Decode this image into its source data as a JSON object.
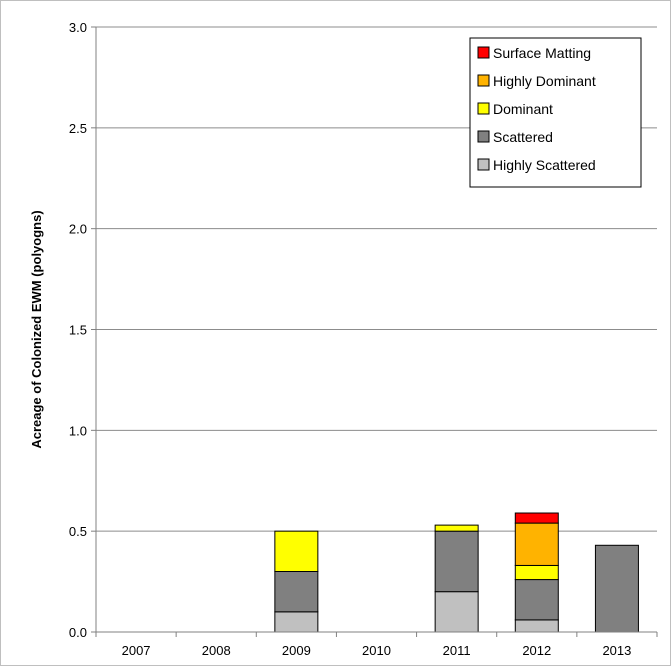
{
  "chart_data": {
    "type": "bar",
    "stacked": true,
    "title": "",
    "xlabel": "",
    "ylabel": "Acreage of Colonized EWM (polyogns)",
    "ylim": [
      0,
      3.0
    ],
    "yticks": [
      "0.0",
      "0.5",
      "1.0",
      "1.5",
      "2.0",
      "2.5",
      "3.0"
    ],
    "ytick_values": [
      0,
      0.5,
      1.0,
      1.5,
      2.0,
      2.5,
      3.0
    ],
    "grid": true,
    "legend_position": "top-right",
    "categories": [
      "2007",
      "2008",
      "2009",
      "2010",
      "2011",
      "2012",
      "2013"
    ],
    "series": [
      {
        "name": "Highly Scattered",
        "color": "#c0c0c0",
        "values": [
          0,
          0,
          0.1,
          0,
          0.2,
          0.06,
          0
        ]
      },
      {
        "name": "Scattered",
        "color": "#808080",
        "values": [
          0,
          0,
          0.2,
          0,
          0.3,
          0.2,
          0.43
        ]
      },
      {
        "name": "Dominant",
        "color": "#ffff00",
        "values": [
          0,
          0,
          0.2,
          0,
          0.03,
          0.07,
          0
        ]
      },
      {
        "name": "Highly Dominant",
        "color": "#ffb300",
        "values": [
          0,
          0,
          0,
          0,
          0,
          0.21,
          0
        ]
      },
      {
        "name": "Surface Matting",
        "color": "#ff0000",
        "values": [
          0,
          0,
          0,
          0,
          0,
          0.05,
          0
        ]
      }
    ],
    "legend_order": [
      "Surface Matting",
      "Highly Dominant",
      "Dominant",
      "Scattered",
      "Highly Scattered"
    ]
  }
}
